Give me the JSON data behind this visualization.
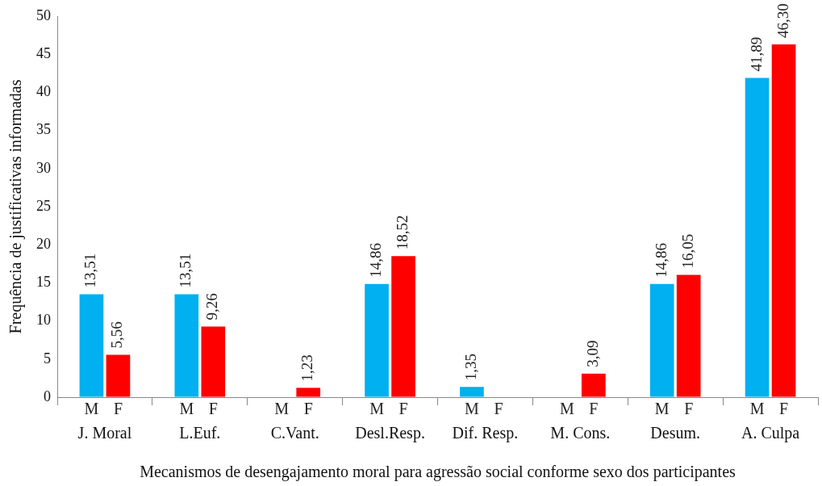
{
  "chart_data": {
    "type": "bar",
    "xlabel": "Mecanismos de desengajamento moral para agressão social conforme sexo dos participantes",
    "ylabel": "Frequência de justificativas informadas",
    "categories": [
      "J. Moral",
      "L.Euf.",
      "C.Vant.",
      "Desl.Resp.",
      "Dif. Resp.",
      "M. Cons.",
      "Desum.",
      "A. Culpa"
    ],
    "series": [
      {
        "name": "M",
        "color": "#00b0f0",
        "values": [
          13.51,
          13.51,
          null,
          14.86,
          1.35,
          null,
          14.86,
          41.89
        ],
        "value_labels": [
          "13,51",
          "13,51",
          null,
          "14,86",
          "1,35",
          null,
          "14,86",
          "41,89"
        ]
      },
      {
        "name": "F",
        "color": "#ff0000",
        "values": [
          5.56,
          9.26,
          1.23,
          18.52,
          null,
          3.09,
          16.05,
          46.3
        ],
        "value_labels": [
          "5,56",
          "9,26",
          "1,23",
          "18,52",
          null,
          "3,09",
          "16,05",
          "46,30"
        ]
      }
    ],
    "ylim": [
      0,
      50
    ],
    "yticks": [
      0,
      5,
      10,
      15,
      20,
      25,
      30,
      35,
      40,
      45,
      50
    ],
    "grid": false,
    "legend": false
  }
}
